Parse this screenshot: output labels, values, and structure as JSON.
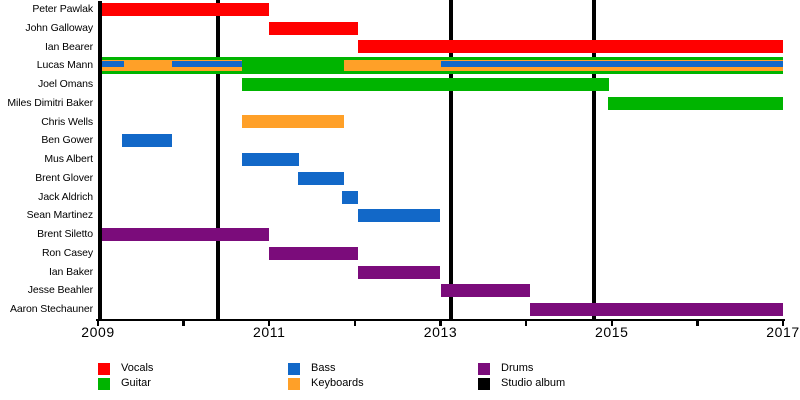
{
  "chart_data": {
    "type": "timeline-gantt",
    "description": "Band members timeline chart: membership periods by instrument role, 2009-2017",
    "x_axis": {
      "min": 2009,
      "max": 2017,
      "tick_years": [
        2009,
        2010,
        2011,
        2012,
        2013,
        2014,
        2015,
        2016,
        2017
      ],
      "labeled_ticks": [
        "2009",
        "2011",
        "2013",
        "2015",
        "2017"
      ],
      "labeled_tick_years": [
        2009,
        2011,
        2013,
        2015,
        2017
      ]
    },
    "roles": {
      "vocals": {
        "label": "Vocals",
        "color": "#ff0000"
      },
      "guitar": {
        "label": "Guitar",
        "color": "#00b400"
      },
      "bass": {
        "label": "Bass",
        "color": "#1268c8"
      },
      "keyboards": {
        "label": "Keyboards",
        "color": "#ffa028"
      },
      "drums": {
        "label": "Drums",
        "color": "#7b0c7b"
      },
      "studio_album": {
        "label": "Studio album",
        "color": "#000000"
      }
    },
    "album_release_lines": [
      2010.4,
      2013.12,
      2014.79
    ],
    "members": [
      {
        "name": "Peter Pawlak",
        "bars": [
          {
            "role": "vocals",
            "start": 2009.0,
            "end": 2011.0
          }
        ]
      },
      {
        "name": "John Galloway",
        "bars": [
          {
            "role": "vocals",
            "start": 2011.0,
            "end": 2012.04
          }
        ]
      },
      {
        "name": "Ian Bearer",
        "bars": [
          {
            "role": "vocals",
            "start": 2012.04,
            "end": 2017.0
          }
        ]
      },
      {
        "name": "Lucas Mann",
        "bars": [
          {
            "role": "guitar",
            "start": 2009.0,
            "end": 2017.0,
            "stripe": "full"
          },
          {
            "role": "keyboards",
            "start": 2009.0,
            "end": 2010.68,
            "stripe": "mid"
          },
          {
            "role": "keyboards",
            "start": 2011.87,
            "end": 2017.0,
            "stripe": "mid"
          },
          {
            "role": "bass",
            "start": 2009.0,
            "end": 2009.3,
            "stripe": "inner"
          },
          {
            "role": "bass",
            "start": 2009.87,
            "end": 2010.68,
            "stripe": "inner"
          },
          {
            "role": "bass",
            "start": 2013.0,
            "end": 2017.0,
            "stripe": "inner"
          }
        ]
      },
      {
        "name": "Joel Omans",
        "bars": [
          {
            "role": "guitar",
            "start": 2010.68,
            "end": 2014.97
          }
        ]
      },
      {
        "name": "Miles Dimitri Baker",
        "bars": [
          {
            "role": "guitar",
            "start": 2014.96,
            "end": 2017.0
          }
        ]
      },
      {
        "name": "Chris Wells",
        "bars": [
          {
            "role": "keyboards",
            "start": 2010.68,
            "end": 2011.87
          }
        ]
      },
      {
        "name": "Ben Gower",
        "bars": [
          {
            "role": "bass",
            "start": 2009.28,
            "end": 2009.87
          }
        ]
      },
      {
        "name": "Mus Albert",
        "bars": [
          {
            "role": "bass",
            "start": 2010.68,
            "end": 2011.35
          }
        ]
      },
      {
        "name": "Brent Glover",
        "bars": [
          {
            "role": "bass",
            "start": 2011.33,
            "end": 2011.87
          }
        ]
      },
      {
        "name": "Jack Aldrich",
        "bars": [
          {
            "role": "bass",
            "start": 2011.85,
            "end": 2012.04
          }
        ]
      },
      {
        "name": "Sean Martinez",
        "bars": [
          {
            "role": "bass",
            "start": 2012.04,
            "end": 2013.0
          }
        ]
      },
      {
        "name": "Brent Siletto",
        "bars": [
          {
            "role": "drums",
            "start": 2009.0,
            "end": 2011.0
          }
        ]
      },
      {
        "name": "Ron Casey",
        "bars": [
          {
            "role": "drums",
            "start": 2011.0,
            "end": 2012.04
          }
        ]
      },
      {
        "name": "Ian Baker",
        "bars": [
          {
            "role": "drums",
            "start": 2012.04,
            "end": 2013.0
          }
        ]
      },
      {
        "name": "Jesse Beahler",
        "bars": [
          {
            "role": "drums",
            "start": 2013.0,
            "end": 2014.04
          }
        ]
      },
      {
        "name": "Aaron Stechauner",
        "bars": [
          {
            "role": "drums",
            "start": 2014.04,
            "end": 2017.0
          }
        ]
      }
    ],
    "legend_columns": [
      [
        {
          "role": "vocals",
          "label": "Vocals"
        },
        {
          "role": "guitar",
          "label": "Guitar"
        }
      ],
      [
        {
          "role": "bass",
          "label": "Bass"
        },
        {
          "role": "keyboards",
          "label": "Keyboards"
        }
      ],
      [
        {
          "role": "drums",
          "label": "Drums"
        },
        {
          "role": "studio_album",
          "label": "Studio album"
        }
      ]
    ]
  }
}
